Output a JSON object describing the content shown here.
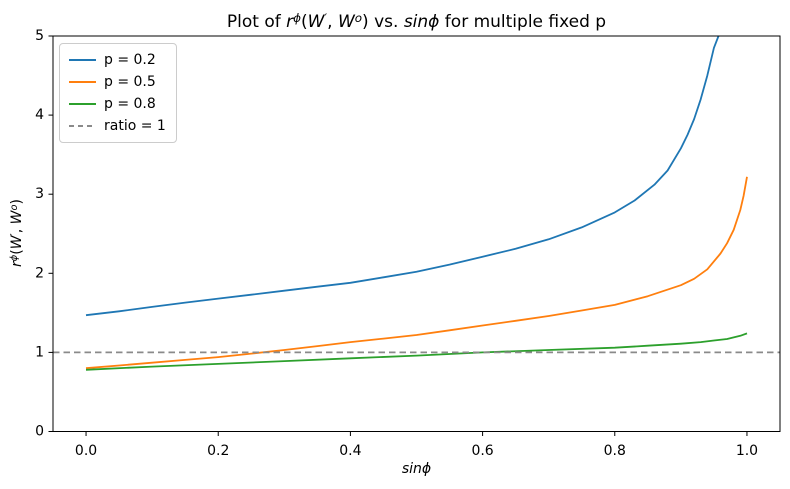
{
  "figure": {
    "background": "#ffffff",
    "title": {
      "t1": "Plot of ",
      "r": "r",
      "phi": "ϕ",
      "open": "(",
      "w": "W",
      "prime": "′",
      "comma": ", ",
      "o": "o",
      "close": ")",
      "t2": " vs. ",
      "sinphi": "sinϕ",
      "t3": " for multiple fixed p"
    },
    "xlabel": {
      "sinphi": "sinϕ"
    },
    "ylabel": {
      "r": "r",
      "phi": "ϕ",
      "open": "(",
      "w": "W",
      "prime": "′",
      "comma": ", ",
      "o": "o",
      "close": ")"
    }
  },
  "chart_data": {
    "type": "line",
    "title": "Plot of r^ϕ(W′, W^o) vs. sinϕ for multiple fixed p",
    "xlabel": "sinϕ",
    "ylabel": "r^ϕ(W′, W^o)",
    "xlim": [
      -0.05,
      1.05
    ],
    "ylim": [
      0,
      5
    ],
    "grid": false,
    "legend_position": "upper-left",
    "frame_color": "#000000",
    "xticks": {
      "values": [
        0,
        0.2,
        0.4,
        0.6,
        0.8,
        1.0
      ],
      "labels": [
        "0.0",
        "0.2",
        "0.4",
        "0.6",
        "0.8",
        "1.0"
      ]
    },
    "yticks": {
      "values": [
        0,
        1,
        2,
        3,
        4,
        5
      ],
      "labels": [
        "0",
        "1",
        "2",
        "3",
        "4",
        "5"
      ]
    },
    "series": [
      {
        "name": "p = 0.2",
        "color": "#1f77b4",
        "style": "solid",
        "x": [
          0,
          0.05,
          0.1,
          0.15,
          0.2,
          0.25,
          0.3,
          0.35,
          0.4,
          0.45,
          0.5,
          0.55,
          0.6,
          0.65,
          0.7,
          0.75,
          0.8,
          0.83,
          0.86,
          0.88,
          0.9,
          0.91,
          0.92,
          0.93,
          0.94,
          0.95,
          0.957
        ],
        "y": [
          1.47,
          1.52,
          1.575,
          1.63,
          1.68,
          1.73,
          1.78,
          1.83,
          1.88,
          1.95,
          2.02,
          2.11,
          2.21,
          2.31,
          2.43,
          2.58,
          2.77,
          2.92,
          3.12,
          3.3,
          3.58,
          3.75,
          3.95,
          4.2,
          4.5,
          4.85,
          5.0
        ]
      },
      {
        "name": "p = 0.5",
        "color": "#ff7f0e",
        "style": "solid",
        "x": [
          0,
          0.05,
          0.1,
          0.15,
          0.2,
          0.25,
          0.3,
          0.35,
          0.4,
          0.45,
          0.5,
          0.55,
          0.6,
          0.65,
          0.7,
          0.75,
          0.8,
          0.85,
          0.9,
          0.92,
          0.94,
          0.96,
          0.97,
          0.98,
          0.99,
          0.995,
          1.0
        ],
        "y": [
          0.8,
          0.835,
          0.87,
          0.905,
          0.94,
          0.985,
          1.03,
          1.08,
          1.13,
          1.175,
          1.22,
          1.28,
          1.34,
          1.4,
          1.46,
          1.53,
          1.6,
          1.71,
          1.85,
          1.93,
          2.05,
          2.25,
          2.38,
          2.55,
          2.8,
          2.98,
          3.22
        ]
      },
      {
        "name": "p = 0.8",
        "color": "#2ca02c",
        "style": "solid",
        "x": [
          0,
          0.1,
          0.2,
          0.3,
          0.4,
          0.5,
          0.6,
          0.7,
          0.8,
          0.85,
          0.9,
          0.93,
          0.95,
          0.97,
          0.98,
          0.99,
          1.0
        ],
        "y": [
          0.78,
          0.82,
          0.855,
          0.89,
          0.925,
          0.96,
          1.0,
          1.03,
          1.06,
          1.085,
          1.11,
          1.13,
          1.15,
          1.17,
          1.19,
          1.21,
          1.24
        ]
      },
      {
        "name": "ratio = 1",
        "color": "#8a8a8a",
        "style": "dashed",
        "x": [
          -0.05,
          1.05
        ],
        "y": [
          1,
          1
        ]
      }
    ]
  }
}
